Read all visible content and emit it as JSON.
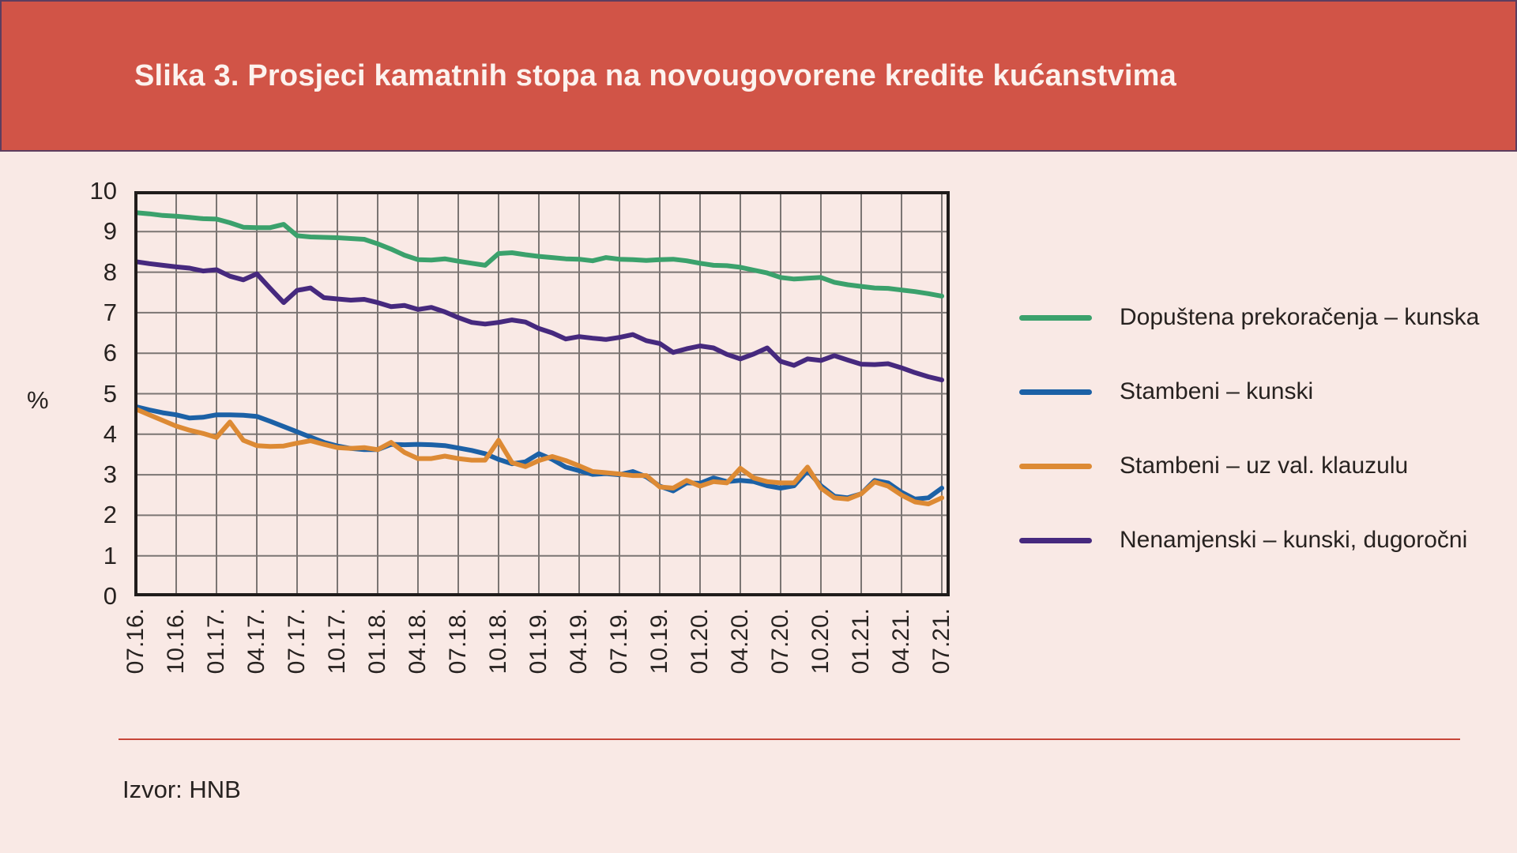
{
  "header": {
    "title": "Slika 3. Prosjeci kamatnih stopa na novougovorene kredite kućanstvima"
  },
  "source": {
    "label": "Izvor: HNB"
  },
  "colors": {
    "page_bg": "#f9e9e5",
    "header_bg": "#d15447",
    "header_border": "#5d3d5f",
    "title_text": "#fcf2ee",
    "axis": "#201c1b",
    "grid": "#7b7573",
    "text": "#272220",
    "divider": "#c74638"
  },
  "chart_data": {
    "type": "line",
    "title": "Slika 3. Prosjeci kamatnih stopa na novougovorene kredite kućanstvima",
    "xlabel": "",
    "ylabel": "%",
    "ylim": [
      0,
      10
    ],
    "yticks": [
      0,
      1,
      2,
      3,
      4,
      5,
      6,
      7,
      8,
      9,
      10
    ],
    "grid": true,
    "legend_position": "right",
    "x_unit": "monthly, 07.2016 - 07.2021 (61 points), labels every 3 months",
    "x_tick_labels": [
      "07.16.",
      "10.16.",
      "01.17.",
      "04.17.",
      "07.17.",
      "10.17.",
      "01.18.",
      "04.18.",
      "07.18.",
      "10.18.",
      "01.19.",
      "04.19.",
      "07.19.",
      "10.19.",
      "01.20.",
      "04.20.",
      "07.20.",
      "10.20.",
      "01.21.",
      "04.21.",
      "07.21."
    ],
    "series": [
      {
        "name": "Dopuštena prekoračenja – kunska",
        "color": "#3ba16c",
        "values": [
          9.47,
          9.44,
          9.4,
          9.38,
          9.35,
          9.32,
          9.31,
          9.22,
          9.11,
          9.1,
          9.1,
          9.18,
          8.9,
          8.87,
          8.86,
          8.85,
          8.83,
          8.81,
          8.7,
          8.57,
          8.42,
          8.31,
          8.3,
          8.33,
          8.27,
          8.22,
          8.17,
          8.46,
          8.48,
          8.43,
          8.39,
          8.36,
          8.33,
          8.32,
          8.28,
          8.36,
          8.32,
          8.31,
          8.29,
          8.31,
          8.32,
          8.28,
          8.22,
          8.17,
          8.16,
          8.12,
          8.05,
          7.98,
          7.87,
          7.83,
          7.85,
          7.87,
          7.75,
          7.69,
          7.65,
          7.61,
          7.6,
          7.56,
          7.52,
          7.47,
          7.41
        ]
      },
      {
        "name": "Stambeni – kunski",
        "color": "#1c61a6",
        "values": [
          4.68,
          4.6,
          4.53,
          4.48,
          4.4,
          4.42,
          4.48,
          4.48,
          4.47,
          4.44,
          4.32,
          4.19,
          4.06,
          3.93,
          3.8,
          3.71,
          3.65,
          3.62,
          3.62,
          3.75,
          3.74,
          3.75,
          3.74,
          3.72,
          3.66,
          3.6,
          3.52,
          3.38,
          3.27,
          3.32,
          3.52,
          3.38,
          3.19,
          3.1,
          3.01,
          3.03,
          3.0,
          3.08,
          2.95,
          2.72,
          2.6,
          2.8,
          2.79,
          2.92,
          2.83,
          2.86,
          2.83,
          2.73,
          2.67,
          2.73,
          3.1,
          2.73,
          2.47,
          2.43,
          2.53,
          2.86,
          2.8,
          2.57,
          2.4,
          2.43,
          2.67
        ]
      },
      {
        "name": "Stambeni – uz val. klauzulu",
        "color": "#dd8a34",
        "values": [
          4.62,
          4.48,
          4.34,
          4.2,
          4.1,
          4.02,
          3.92,
          4.3,
          3.85,
          3.72,
          3.7,
          3.71,
          3.78,
          3.84,
          3.75,
          3.67,
          3.65,
          3.67,
          3.62,
          3.8,
          3.55,
          3.4,
          3.4,
          3.46,
          3.4,
          3.36,
          3.36,
          3.85,
          3.3,
          3.2,
          3.35,
          3.45,
          3.35,
          3.22,
          3.08,
          3.05,
          3.02,
          2.98,
          2.98,
          2.7,
          2.67,
          2.86,
          2.72,
          2.83,
          2.8,
          3.16,
          2.92,
          2.83,
          2.8,
          2.8,
          3.19,
          2.67,
          2.43,
          2.4,
          2.53,
          2.82,
          2.72,
          2.5,
          2.33,
          2.28,
          2.43
        ]
      },
      {
        "name": "Nenamjenski – kunski, dugoročni",
        "color": "#46297e",
        "values": [
          8.26,
          8.21,
          8.17,
          8.13,
          8.1,
          8.03,
          8.06,
          7.9,
          7.81,
          7.96,
          7.6,
          7.25,
          7.55,
          7.61,
          7.37,
          7.34,
          7.31,
          7.33,
          7.25,
          7.15,
          7.18,
          7.08,
          7.13,
          7.02,
          6.88,
          6.76,
          6.72,
          6.76,
          6.82,
          6.77,
          6.61,
          6.5,
          6.35,
          6.41,
          6.37,
          6.34,
          6.39,
          6.46,
          6.31,
          6.24,
          6.02,
          6.11,
          6.18,
          6.13,
          5.97,
          5.86,
          5.98,
          6.13,
          5.8,
          5.7,
          5.86,
          5.82,
          5.94,
          5.83,
          5.73,
          5.72,
          5.74,
          5.64,
          5.52,
          5.42,
          5.34
        ]
      }
    ]
  }
}
